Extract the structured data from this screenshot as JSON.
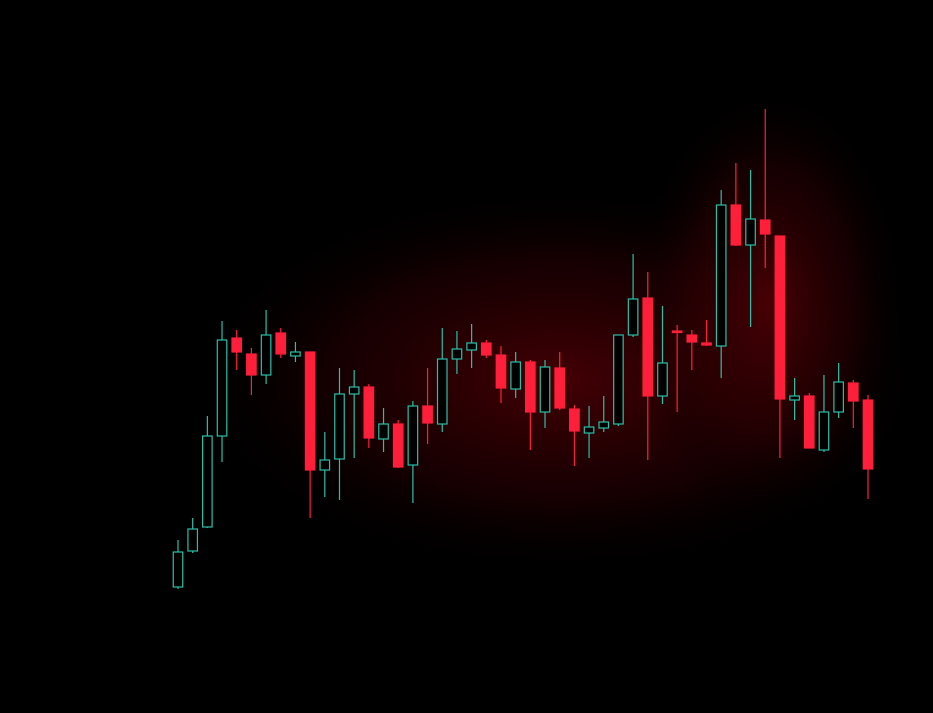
{
  "chart_data": {
    "type": "candlestick",
    "up_color": "#2bbfa8",
    "down_color": "#ff1f3a",
    "ylim": [
      0,
      713
    ],
    "open": [
      126,
      162,
      186,
      277,
      375,
      359,
      338,
      380,
      357,
      361,
      243,
      254,
      319,
      326,
      274,
      289,
      248,
      307,
      289,
      354,
      363,
      370,
      358,
      324,
      351,
      301,
      345,
      304,
      280,
      285,
      289,
      378,
      415,
      317,
      382,
      378,
      370,
      367,
      508,
      468,
      493,
      477,
      313,
      317,
      263,
      301,
      330,
      313
    ],
    "high": [
      173,
      195,
      297,
      392,
      383,
      365,
      403,
      385,
      371,
      361,
      281,
      345,
      343,
      329,
      305,
      293,
      312,
      345,
      385,
      382,
      389,
      373,
      367,
      361,
      353,
      353,
      361,
      308,
      307,
      317,
      378,
      459,
      441,
      407,
      388,
      383,
      393,
      523,
      550,
      543,
      604,
      477,
      335,
      320,
      338,
      350,
      333,
      318
    ],
    "low": [
      124,
      160,
      185,
      251,
      343,
      318,
      329,
      355,
      351,
      195,
      216,
      213,
      255,
      265,
      261,
      245,
      210,
      269,
      281,
      339,
      345,
      355,
      310,
      315,
      263,
      285,
      303,
      247,
      255,
      281,
      287,
      376,
      253,
      309,
      301,
      343,
      367,
      335,
      467,
      386,
      445,
      255,
      293,
      265,
      261,
      295,
      285,
      214
    ],
    "close": [
      161,
      184,
      277,
      373,
      361,
      338,
      378,
      359,
      361,
      243,
      253,
      319,
      326,
      275,
      289,
      246,
      307,
      290,
      354,
      364,
      370,
      358,
      325,
      351,
      301,
      346,
      305,
      282,
      286,
      291,
      378,
      414,
      317,
      350,
      381,
      371,
      368,
      508,
      468,
      494,
      479,
      314,
      317,
      265,
      301,
      331,
      312,
      244
    ]
  }
}
